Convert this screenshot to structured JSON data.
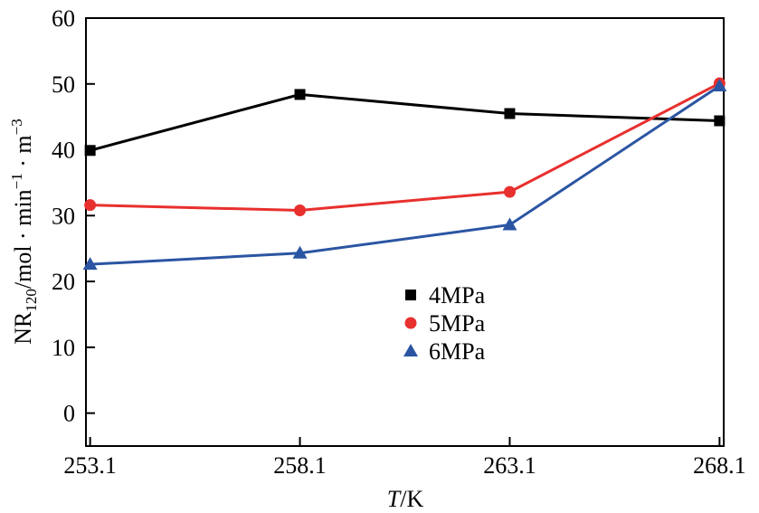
{
  "chart_data": {
    "type": "line",
    "title": "",
    "xlabel_italic": "T",
    "xlabel_rest": "/K",
    "ylabel": {
      "base": "NR",
      "sub": "120",
      "mid": "/mol · min",
      "sup1": "−1",
      "mid2": " · m",
      "sup2": "−3"
    },
    "x": [
      253.1,
      258.1,
      263.1,
      268.1
    ],
    "xticks": [
      "253.1",
      "258.1",
      "263.1",
      "268.1"
    ],
    "xlim": [
      253.0,
      268.2
    ],
    "ylim": [
      -5,
      60
    ],
    "yticks": [
      0,
      10,
      20,
      30,
      40,
      50,
      60
    ],
    "grid": false,
    "legend_position": "center",
    "series": [
      {
        "name": "4MPa",
        "values": [
          39.9,
          48.4,
          45.5,
          44.4
        ],
        "color": "#000000",
        "marker": "square"
      },
      {
        "name": "5MPa",
        "values": [
          31.6,
          30.8,
          33.6,
          50.1
        ],
        "color": "#e8302e",
        "marker": "circle"
      },
      {
        "name": "6MPa",
        "values": [
          22.6,
          24.3,
          28.6,
          49.7
        ],
        "color": "#2b55a2",
        "marker": "triangle"
      }
    ]
  }
}
